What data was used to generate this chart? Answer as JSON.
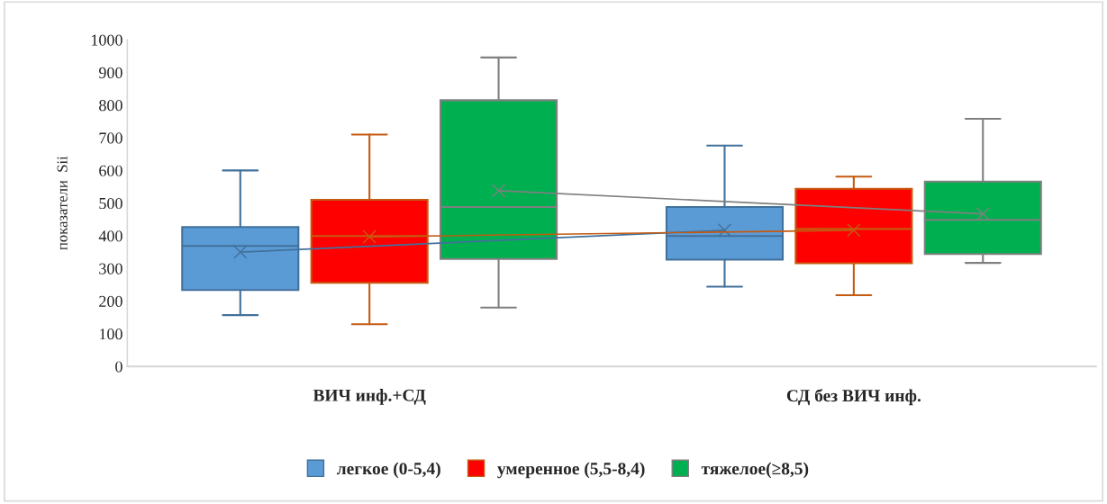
{
  "chart_data": {
    "type": "box",
    "ylabel": "показатели  Sii",
    "categories": [
      "ВИЧ инф.+СД",
      "СД без ВИЧ инф."
    ],
    "ylim": [
      0,
      1000
    ],
    "yticks": [
      0,
      100,
      200,
      300,
      400,
      500,
      600,
      700,
      800,
      900,
      1000
    ],
    "grid": false,
    "legend": "bottom",
    "series": [
      {
        "name": "легкое (0-5,4)",
        "color": "#5b9bd5",
        "boxes": [
          {
            "low": 157,
            "q1": 234,
            "median": 369,
            "q3": 427,
            "high": 600,
            "mean": 350
          },
          {
            "low": 244,
            "q1": 327,
            "median": 399,
            "q3": 488,
            "high": 676,
            "mean": 417
          }
        ]
      },
      {
        "name": "умеренное (5,5-8,4)",
        "color": "#ff0000",
        "boxes": [
          {
            "low": 129,
            "q1": 256,
            "median": 399,
            "q3": 510,
            "high": 710,
            "mean": 397
          },
          {
            "low": 218,
            "q1": 316,
            "median": 421,
            "q3": 544,
            "high": 581,
            "mean": 417
          }
        ]
      },
      {
        "name": "тяжелое(≥8,5)",
        "color": "#00b050",
        "boxes": [
          {
            "low": 180,
            "q1": 329,
            "median": 488,
            "q3": 815,
            "high": 946,
            "mean": 538
          },
          {
            "low": 317,
            "q1": 344,
            "median": 449,
            "q3": 566,
            "high": 758,
            "mean": 467
          }
        ]
      },
      {
        "type": "line",
        "color": "#41719c",
        "values": [
          350,
          417
        ]
      },
      {
        "type": "line",
        "color": "#c55a11",
        "values": [
          397,
          417
        ]
      },
      {
        "type": "line",
        "color": "#7f7f7f",
        "values": [
          538,
          467
        ]
      }
    ]
  }
}
